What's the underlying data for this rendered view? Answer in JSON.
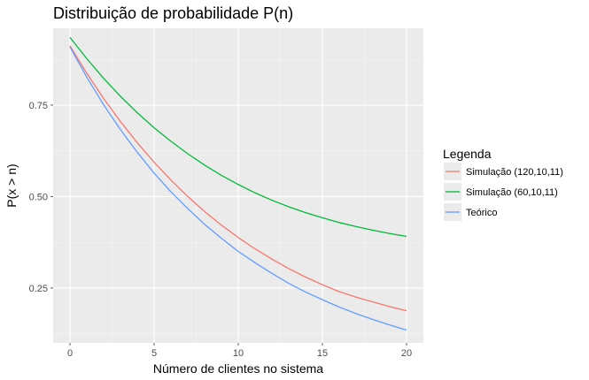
{
  "chart_data": {
    "type": "line",
    "title": "Distribuição de probabilidade P(n)",
    "xlabel": "Número de clientes no sistema",
    "ylabel": "P(x > n)",
    "xlim": [
      -1,
      21
    ],
    "ylim": [
      0.1,
      0.96
    ],
    "xticks": [
      0,
      5,
      10,
      15,
      20
    ],
    "xtick_labels": [
      "0",
      "5",
      "10",
      "15",
      "20"
    ],
    "yticks": [
      0.25,
      0.5,
      0.75
    ],
    "ytick_labels": [
      "0.25",
      "0.50",
      "0.75"
    ],
    "legend": {
      "title": "Legenda",
      "position": "right"
    },
    "x": [
      0,
      1,
      2,
      3,
      4,
      5,
      6,
      7,
      8,
      9,
      10,
      11,
      12,
      13,
      14,
      15,
      16,
      17,
      18,
      19,
      20
    ],
    "series": [
      {
        "name": "Simulação (120,10,11)",
        "color": "#F8766D",
        "values": [
          0.912,
          0.837,
          0.768,
          0.705,
          0.647,
          0.594,
          0.545,
          0.5,
          0.459,
          0.422,
          0.388,
          0.357,
          0.329,
          0.303,
          0.28,
          0.259,
          0.24,
          0.225,
          0.212,
          0.199,
          0.188
        ]
      },
      {
        "name": "Simulação (60,10,11)",
        "color": "#00BA38",
        "values": [
          0.935,
          0.877,
          0.823,
          0.774,
          0.729,
          0.688,
          0.651,
          0.617,
          0.586,
          0.558,
          0.533,
          0.51,
          0.49,
          0.472,
          0.456,
          0.442,
          0.429,
          0.418,
          0.408,
          0.399,
          0.391
        ]
      },
      {
        "name": "Teórico",
        "color": "#619CFF",
        "values": [
          0.909,
          0.826,
          0.751,
          0.683,
          0.621,
          0.564,
          0.513,
          0.467,
          0.424,
          0.386,
          0.35,
          0.319,
          0.29,
          0.263,
          0.239,
          0.218,
          0.198,
          0.18,
          0.164,
          0.149,
          0.135
        ]
      }
    ]
  }
}
